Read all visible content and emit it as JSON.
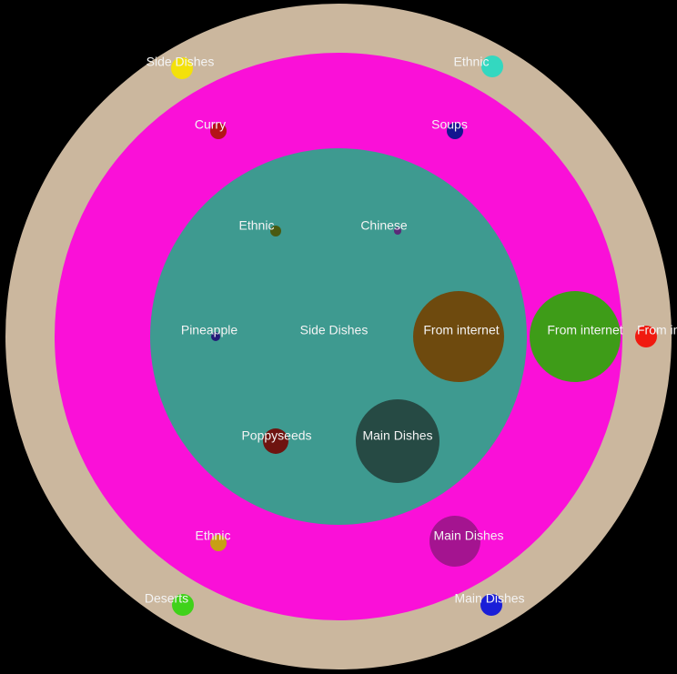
{
  "colors": {
    "background": "#000000",
    "outer_ring": "#cbb79e",
    "middle_ring": "#fa10d8",
    "inner_disc": "#3e9a90",
    "label_text": "#f4f4f4"
  },
  "labels": {
    "side_dishes": "Side Dishes",
    "ethnic": "Ethnic",
    "chinese": "Chinese",
    "pineapple": "Pineapple",
    "poppyseeds": "Poppyseeds",
    "main_dishes": "Main Dishes",
    "from_internet": "From internet",
    "curry": "Curry",
    "soups": "Soups",
    "deserts": "Deserts"
  },
  "node_colors": {
    "outer_side_dishes": "#f3e10a",
    "outer_ethnic": "#33d8c0",
    "outer_deserts": "#3fd21a",
    "outer_main_dishes": "#1a1ed8",
    "outer_from_internet": "#f01a10",
    "middle_curry": "#b41418",
    "middle_soups": "#141690",
    "middle_ethnic": "#c8a014",
    "middle_main_dishes": "#a41490",
    "middle_from_internet": "#3e9c18",
    "inner_ethnic": "#4a5a10",
    "inner_chinese": "#5a2a78",
    "inner_pineapple": "#241a78",
    "inner_poppyseeds": "#6e1410",
    "inner_main_dishes": "#264a44",
    "inner_from_internet": "#6e4a0e"
  }
}
